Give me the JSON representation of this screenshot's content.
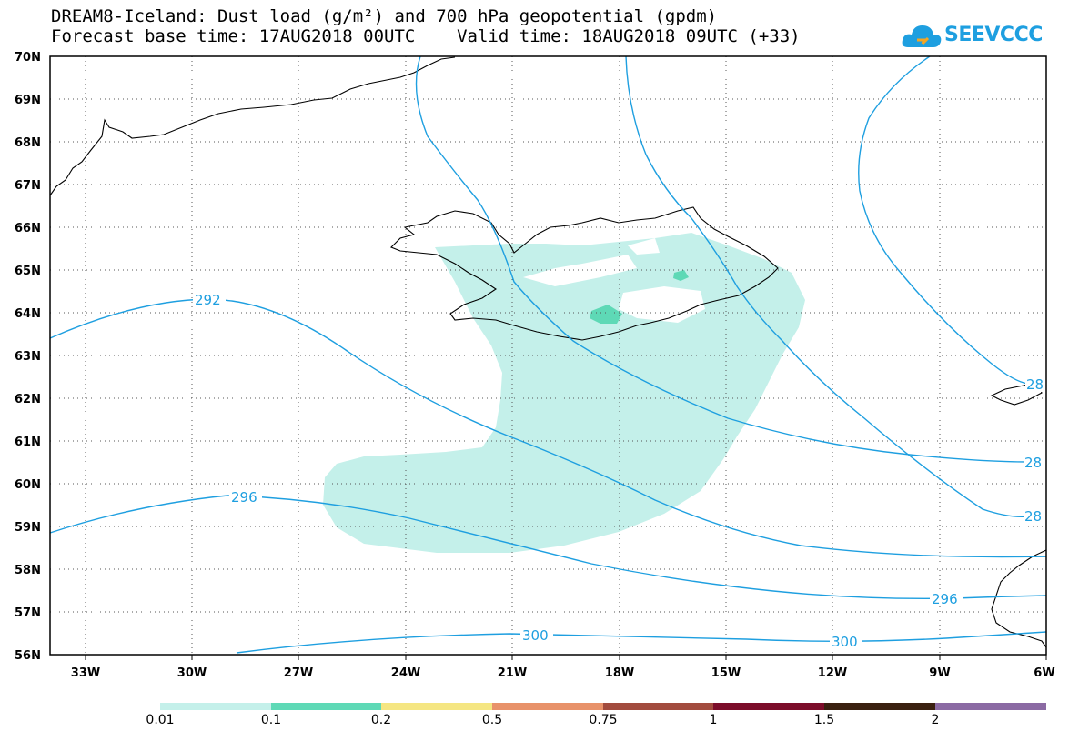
{
  "title": {
    "line1": "DREAM8-Iceland: Dust load (g/m²) and 700 hPa geopotential (gpdm)",
    "line2": "Forecast base time: 17AUG2018 00UTC    Valid time: 18AUG2018 09UTC (+33)"
  },
  "logo": {
    "text": "SEEVCCC",
    "icon": "cloud-logo-icon"
  },
  "map": {
    "lat_labels": [
      "70N",
      "69N",
      "68N",
      "67N",
      "66N",
      "65N",
      "64N",
      "63N",
      "62N",
      "61N",
      "60N",
      "59N",
      "58N",
      "57N",
      "56N"
    ],
    "lon_labels": [
      "33W",
      "30W",
      "27W",
      "24W",
      "21W",
      "18W",
      "15W",
      "12W",
      "9W",
      "6W"
    ],
    "grid": "dotted",
    "contour_color": "#1e9fe0",
    "dust_color": "#c4f0ea",
    "dust_high_color": "#5ed9b6",
    "contour_labels": [
      "292",
      "296",
      "296",
      "300",
      "300",
      "28",
      "28",
      "28"
    ]
  },
  "colorbar": {
    "colors": [
      "#c4f0ea",
      "#5ed9b6",
      "#f5e682",
      "#e8926a",
      "#a24b3e",
      "#7c0d2a",
      "#3a2010",
      "#8b6aa3"
    ],
    "labels": [
      "0.01",
      "0.1",
      "0.2",
      "0.5",
      "0.75",
      "1",
      "1.5",
      "2"
    ]
  }
}
